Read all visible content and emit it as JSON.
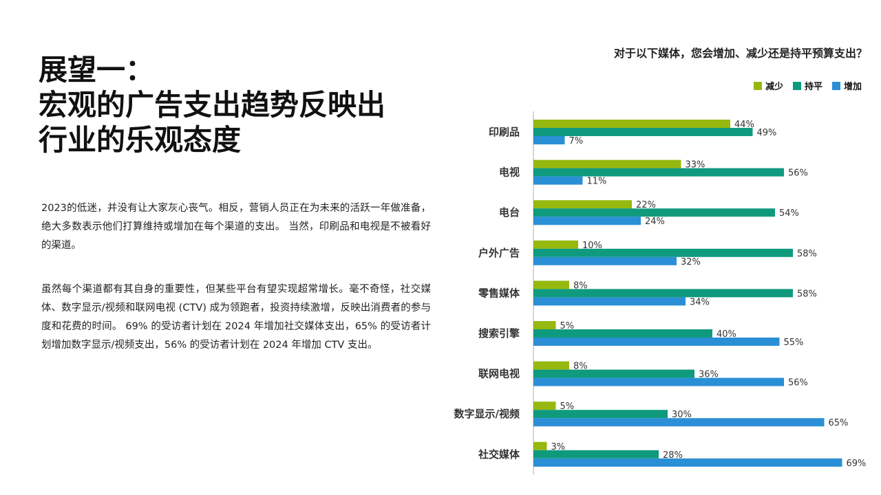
{
  "title": {
    "line1": "展望一：",
    "line2": "宏观的广告支出趋势反映出",
    "line3": "行业的乐观态度"
  },
  "paragraphs": [
    "2023的低迷，并没有让大家灰心丧气。相反，营销人员正在为未来的活跃一年做准备，绝大多数表示他们打算维持或增加在每个渠道的支出。 当然，印刷品和电视是不被看好的渠道。",
    "虽然每个渠道都有其自身的重要性，但某些平台有望实现超常增长。毫不奇怪，社交媒体、数字显示/视频和联网电视 (CTV) 成为领跑者，投资持续激增，反映出消费者的参与度和花费的时间。 69% 的受访者计划在 2024 年增加社交媒体支出，65% 的受访者计划增加数字显示/视频支出，56% 的受访者计划在 2024 年增加 CTV 支出。"
  ],
  "chart_data": {
    "type": "bar",
    "orientation": "horizontal",
    "title": "对于以下媒体，您会增加、减少还是持平预算支出？",
    "categories": [
      "印刷品",
      "电视",
      "电台",
      "户外广告",
      "零售媒体",
      "搜索引擎",
      "联网电视",
      "数字显示/视频",
      "社交媒体"
    ],
    "series": [
      {
        "name": "减少",
        "color": "#97b80f",
        "values": [
          44,
          33,
          22,
          10,
          8,
          5,
          8,
          5,
          3
        ]
      },
      {
        "name": "持平",
        "color": "#0f9a7e",
        "values": [
          49,
          56,
          54,
          58,
          58,
          40,
          36,
          30,
          28
        ]
      },
      {
        "name": "增加",
        "color": "#2b8fd6",
        "values": [
          7,
          11,
          24,
          32,
          34,
          55,
          56,
          65,
          69
        ]
      }
    ],
    "value_suffix": "%",
    "legend_position": "top-right",
    "grid": false
  }
}
